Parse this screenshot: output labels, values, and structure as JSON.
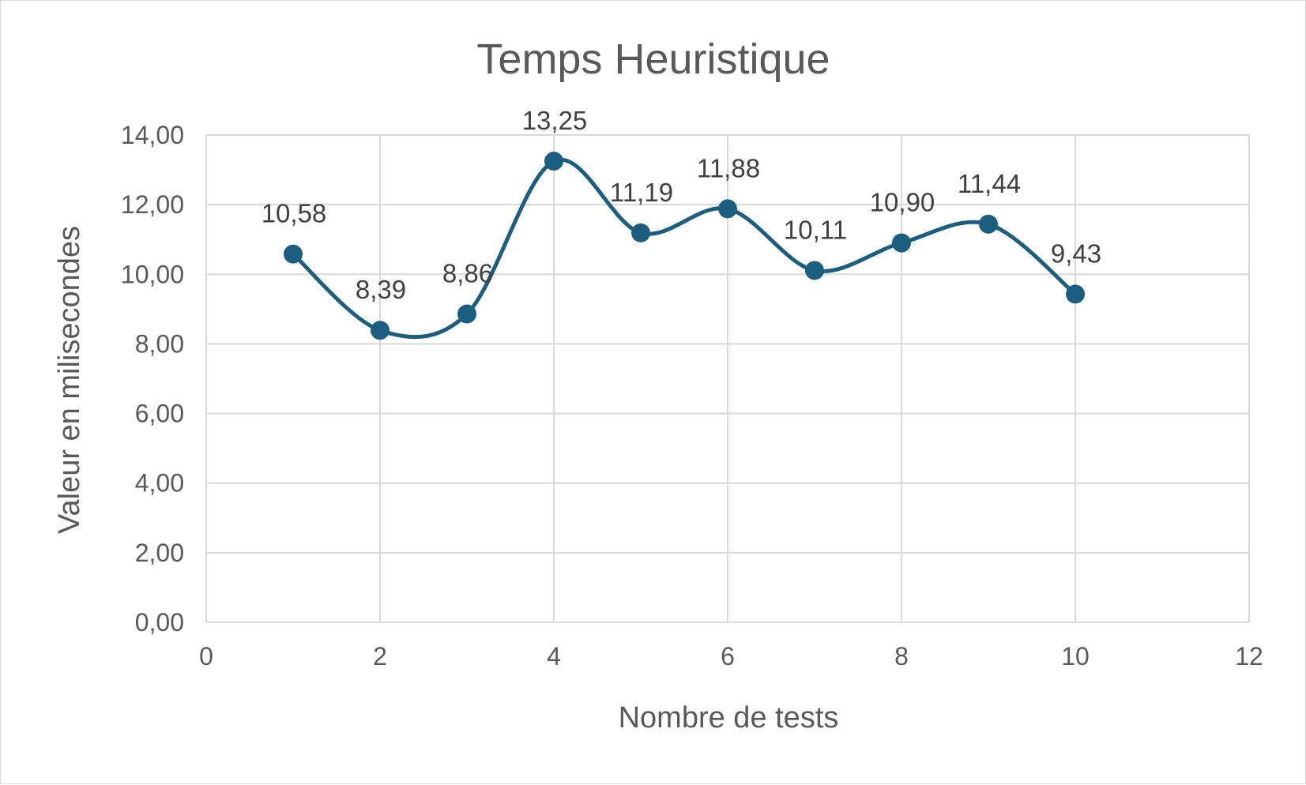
{
  "chart_data": {
    "type": "line",
    "title": "Temps Heuristique",
    "xlabel": "Nombre de tests",
    "ylabel": "Valeur en milisecondes",
    "xlim": [
      0,
      12
    ],
    "ylim": [
      0,
      14
    ],
    "x_ticks": [
      0,
      2,
      4,
      6,
      8,
      10,
      12
    ],
    "x_tick_labels": [
      "0",
      "2",
      "4",
      "6",
      "8",
      "10",
      "12"
    ],
    "y_ticks": [
      0,
      2,
      4,
      6,
      8,
      10,
      12,
      14
    ],
    "y_tick_labels": [
      "0,00",
      "2,00",
      "4,00",
      "6,00",
      "8,00",
      "10,00",
      "12,00",
      "14,00"
    ],
    "grid": true,
    "smooth": true,
    "legend": "none",
    "series_color": "#1b5e80",
    "grid_color": "#d9d9d9",
    "series": [
      {
        "x": [
          1,
          2,
          3,
          4,
          5,
          6,
          7,
          8,
          9,
          10
        ],
        "values": [
          10.58,
          8.39,
          8.86,
          13.25,
          11.19,
          11.88,
          10.11,
          10.9,
          11.44,
          9.43
        ],
        "labels": [
          "10,58",
          "8,39",
          "8,86",
          "13,25",
          "11,19",
          "11,88",
          "10,11",
          "10,90",
          "11,44",
          "9,43"
        ]
      }
    ]
  }
}
